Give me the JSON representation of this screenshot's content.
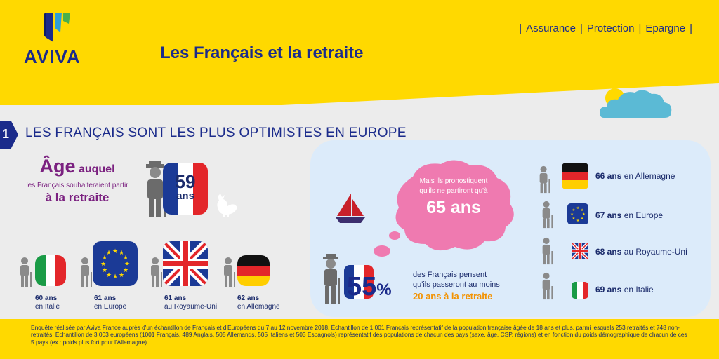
{
  "brand": {
    "name": "AVIVA"
  },
  "header": {
    "title": "Les Français et la retraite",
    "tagline": [
      "Assurance",
      "Protection",
      "Epargne"
    ]
  },
  "section": {
    "number": "1",
    "title": "LES FRANÇAIS SONT LES PLUS OPTIMISTES EN EUROPE"
  },
  "age_block": {
    "title_big": "Âge",
    "title_rest": "auquel",
    "subtitle": "les Français souhaiteraient partir",
    "emphasis": "à la retraite",
    "fr_value": "59",
    "fr_unit": "ans"
  },
  "countries_wish": [
    {
      "age": "60 ans",
      "country": "en Italie"
    },
    {
      "age": "61 ans",
      "country": "en Europe"
    },
    {
      "age": "61 ans",
      "country": "au Royaume-Uni"
    },
    {
      "age": "62 ans",
      "country": "en Allemagne"
    }
  ],
  "cloud": {
    "line1": "Mais ils pronostiquent",
    "line2": "qu'ils ne partiront qu'à",
    "value": "65 ans"
  },
  "stat": {
    "value": "55",
    "unit": "%",
    "line1": "des Français pensent",
    "line2": "qu'ils passeront au moins",
    "highlight": "20 ans à la retraite"
  },
  "countries_predict": [
    {
      "age": "66 ans",
      "country": "en Allemagne"
    },
    {
      "age": "67 ans",
      "country": "en Europe"
    },
    {
      "age": "68 ans",
      "country": "au Royaume-Uni"
    },
    {
      "age": "69 ans",
      "country": "en Italie"
    }
  ],
  "footer": {
    "text": "Enquête réalisée par Aviva France auprès d'un échantillon de Français et d'Européens du 7 au 12 novembre 2018. Échantillon de 1 001 Français représentatif de la population française âgée de 18 ans et plus, parmi lesquels 253 retraités et 748 non-retraités. Échantillon de 3 003 européens (1001 Français, 489 Anglais, 505 Allemands, 505 Italiens et 503 Espagnols) représentatif des populations de chacun des pays (sexe, âge, CSP, régions) et en fonction du poids démographique de chacun de ces 5 pays (ex : poids plus fort pour l'Allemagne)."
  },
  "colors": {
    "yellow": "#ffd900",
    "navy": "#1b2b8b",
    "purple": "#7b2180",
    "pink": "#ef7ab0",
    "orange": "#f39200",
    "light_blue": "#dcebfa"
  }
}
